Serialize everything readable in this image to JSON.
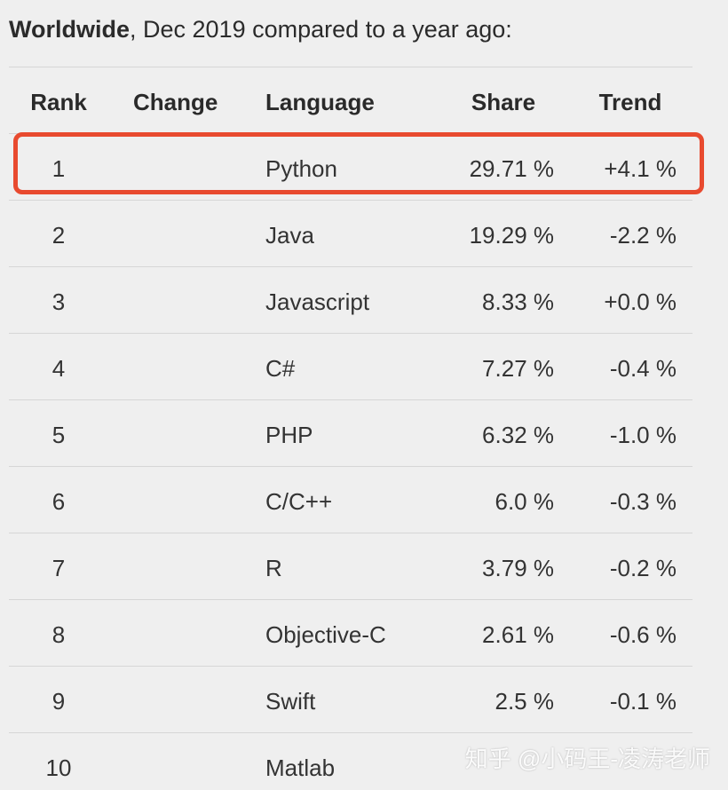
{
  "heading": {
    "bold": "Worldwide",
    "rest": ", Dec 2019 compared to a year ago:"
  },
  "columns": {
    "rank": "Rank",
    "change": "Change",
    "language": "Language",
    "share": "Share",
    "trend": "Trend"
  },
  "rows": [
    {
      "rank": "1",
      "language": "Python",
      "share": "29.71 %",
      "trend": "+4.1 %"
    },
    {
      "rank": "2",
      "language": "Java",
      "share": "19.29 %",
      "trend": "-2.2 %"
    },
    {
      "rank": "3",
      "language": "Javascript",
      "share": "8.33 %",
      "trend": "+0.0 %"
    },
    {
      "rank": "4",
      "language": "C#",
      "share": "7.27 %",
      "trend": "-0.4 %"
    },
    {
      "rank": "5",
      "language": "PHP",
      "share": "6.32 %",
      "trend": "-1.0 %"
    },
    {
      "rank": "6",
      "language": "C/C++",
      "share": "6.0 %",
      "trend": "-0.3 %"
    },
    {
      "rank": "7",
      "language": "R",
      "share": "3.79 %",
      "trend": "-0.2 %"
    },
    {
      "rank": "8",
      "language": "Objective-C",
      "share": "2.61 %",
      "trend": "-0.6 %"
    },
    {
      "rank": "9",
      "language": "Swift",
      "share": "2.5 %",
      "trend": "-0.1 %"
    },
    {
      "rank": "10",
      "language": "Matlab",
      "share": "",
      "trend": ""
    }
  ],
  "highlight_color": "#e84a2f",
  "watermark": "知乎 @小码王-凌涛老师"
}
